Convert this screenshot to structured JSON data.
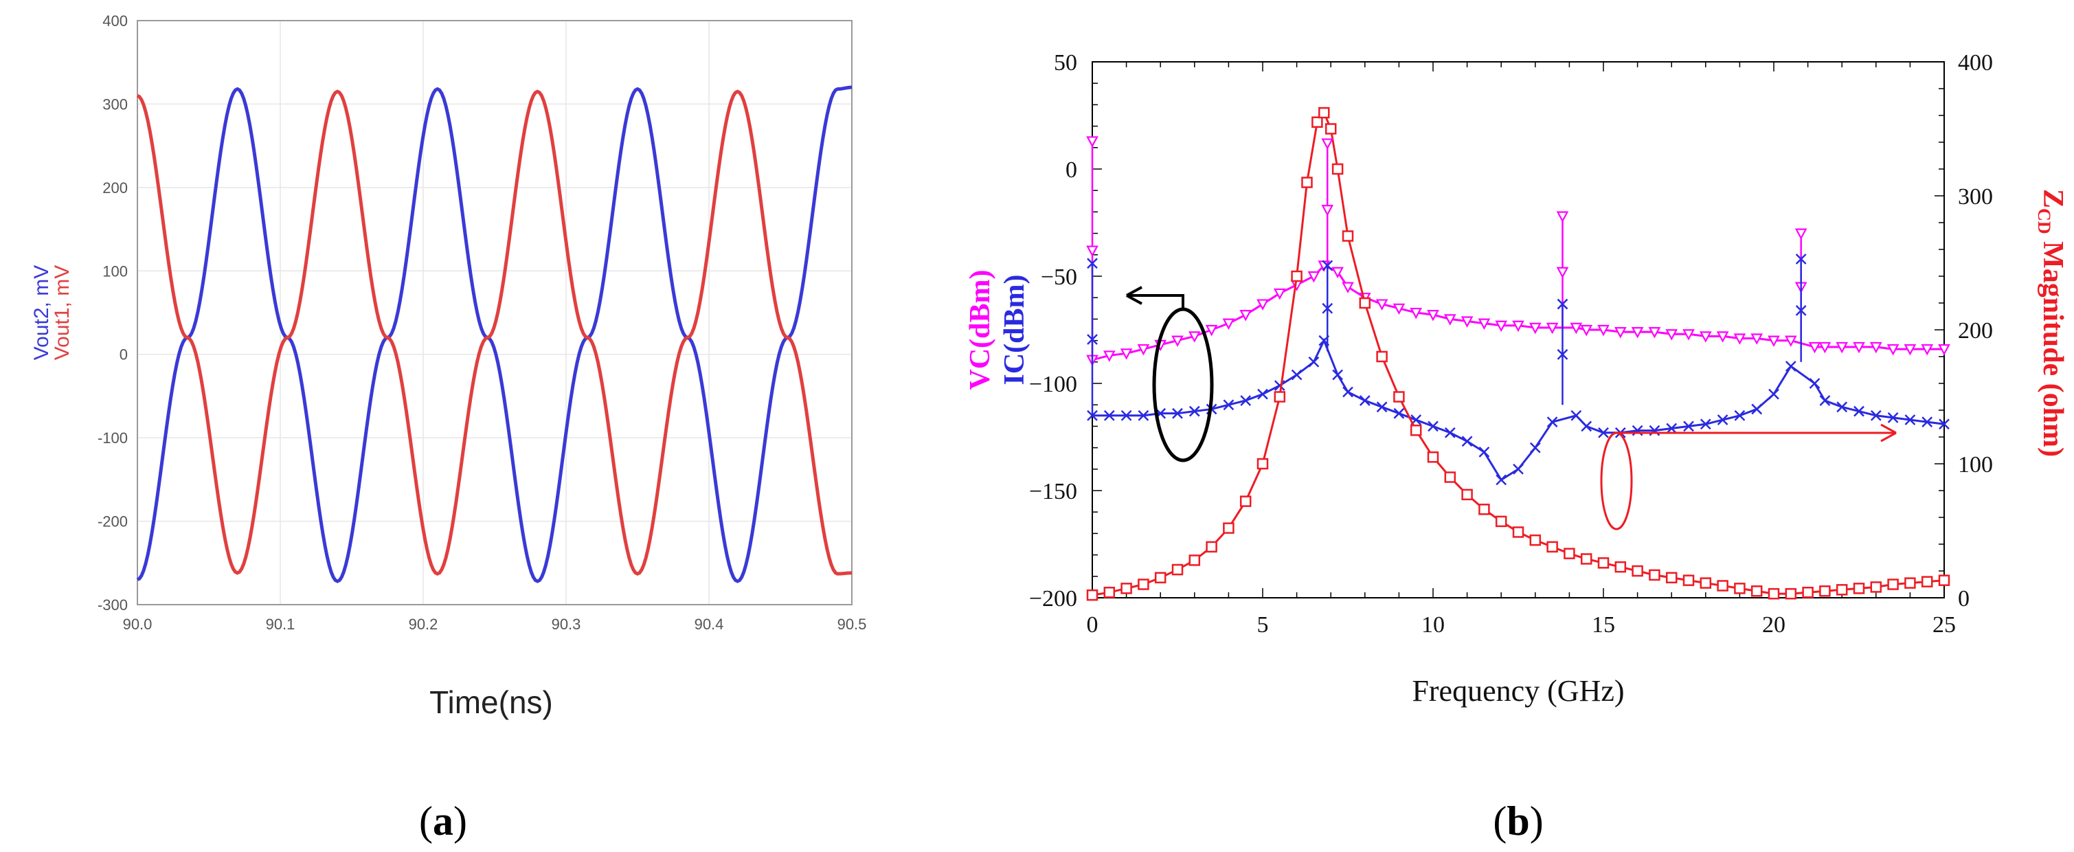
{
  "panels": {
    "a": {
      "label_open": "(",
      "label_letter": "a",
      "label_close": ")"
    },
    "b": {
      "label_open": "(",
      "label_letter": "b",
      "label_close": ")"
    }
  },
  "chart_data": [
    {
      "type": "line",
      "xlabel": "Time(ns)",
      "ylabel_parts": [
        {
          "text": "Vout2, mV",
          "color": "#3a3ad6"
        },
        {
          "text": "Vout1, mV",
          "color": "#e0403f"
        }
      ],
      "xlim": [
        90.0,
        90.5
      ],
      "ylim": [
        -300,
        400
      ],
      "x_ticks": [
        "90.0",
        "90.1",
        "90.2",
        "90.3",
        "90.4",
        "90.5"
      ],
      "y_ticks": [
        "400",
        "300",
        "200",
        "100",
        "0",
        "-100",
        "-200",
        "-300"
      ],
      "grid": true,
      "series": [
        {
          "name": "Vout2",
          "color": "#3a3ad6",
          "x": [
            90.0,
            90.035,
            90.07,
            90.105,
            90.14,
            90.175,
            90.21,
            90.245,
            90.28,
            90.315,
            90.35,
            90.385,
            90.42,
            90.455,
            90.49,
            90.5
          ],
          "y": [
            -270,
            20,
            318,
            20,
            -272,
            20,
            318,
            20,
            -272,
            20,
            318,
            20,
            -272,
            20,
            318,
            320
          ]
        },
        {
          "name": "Vout1",
          "color": "#e0403f",
          "x": [
            90.0,
            90.035,
            90.07,
            90.105,
            90.14,
            90.175,
            90.21,
            90.245,
            90.28,
            90.315,
            90.35,
            90.385,
            90.42,
            90.455,
            90.49,
            90.5
          ],
          "y": [
            310,
            20,
            -262,
            20,
            315,
            20,
            -263,
            20,
            315,
            20,
            -263,
            20,
            315,
            20,
            -263,
            -262
          ]
        }
      ]
    },
    {
      "type": "line",
      "xlabel": "Frequency (GHz)",
      "ylabel_left_parts": [
        {
          "text": "VC(dBm)",
          "color": "#ff00ff"
        },
        {
          "text": "IC(dBm)",
          "color": "#2a2ae0"
        }
      ],
      "ylabel_right": {
        "main": "Z",
        "sub": "CD",
        "rest": " Magnitude (ohm)",
        "color": "#ee1c24"
      },
      "xlim": [
        0,
        25
      ],
      "ylim_left": [
        -200,
        50
      ],
      "ylim_right": [
        0,
        400
      ],
      "x_ticks": [
        "0",
        "5",
        "10",
        "15",
        "20",
        "25"
      ],
      "y_ticks_left": [
        "50",
        "0",
        "−50",
        "−100",
        "−150",
        "−200"
      ],
      "y_ticks_right": [
        "400",
        "300",
        "200",
        "100",
        "0"
      ],
      "series": [
        {
          "name": "VC",
          "axis": "left",
          "color": "#ff00ff",
          "marker": "triangle-down",
          "x": [
            0,
            0.5,
            1,
            1.5,
            2,
            2.5,
            3,
            3.5,
            4,
            4.5,
            5,
            5.5,
            6,
            6.5,
            6.8,
            7.2,
            7.5,
            8,
            8.5,
            9,
            9.5,
            10,
            10.5,
            11,
            11.5,
            12,
            12.5,
            13,
            13.5,
            14.2,
            14.5,
            15,
            15.5,
            16,
            16.5,
            17,
            17.5,
            18,
            18.5,
            19,
            19.5,
            20,
            20.5,
            21.2,
            21.5,
            22,
            22.5,
            23,
            23.5,
            24,
            24.5,
            25
          ],
          "y": [
            -89,
            -87,
            -86,
            -84,
            -82,
            -80,
            -78,
            -75,
            -72,
            -68,
            -63,
            -58,
            -54,
            -50,
            -45,
            -48,
            -55,
            -60,
            -63,
            -65,
            -67,
            -68,
            -70,
            -71,
            -72,
            -73,
            -73,
            -74,
            -74,
            -74,
            -75,
            -75,
            -76,
            -76,
            -76,
            -77,
            -77,
            -78,
            -78,
            -79,
            -79,
            -80,
            -80,
            -83,
            -83,
            -83,
            -83,
            -83,
            -84,
            -84,
            -84,
            -84
          ]
        },
        {
          "name": "IC",
          "axis": "left",
          "color": "#2a2ae0",
          "marker": "x",
          "x": [
            0,
            0.5,
            1,
            1.5,
            2,
            2.5,
            3,
            3.5,
            4,
            4.5,
            5,
            5.5,
            6,
            6.5,
            6.8,
            7.2,
            7.5,
            8,
            8.5,
            9,
            9.5,
            10,
            10.5,
            11,
            11.5,
            12,
            12.5,
            13,
            13.5,
            14.2,
            14.5,
            15,
            15.5,
            16,
            16.5,
            17,
            17.5,
            18,
            18.5,
            19,
            19.5,
            20,
            20.5,
            21.2,
            21.5,
            22,
            22.5,
            23,
            23.5,
            24,
            24.5,
            25
          ],
          "y": [
            -115,
            -115,
            -115,
            -115,
            -114,
            -114,
            -113,
            -112,
            -110,
            -108,
            -105,
            -101,
            -96,
            -90,
            -80,
            -96,
            -104,
            -108,
            -111,
            -114,
            -117,
            -120,
            -123,
            -127,
            -132,
            -145,
            -140,
            -130,
            -118,
            -115,
            -120,
            -123,
            -123,
            -122,
            -122,
            -121,
            -120,
            -119,
            -117,
            -115,
            -112,
            -105,
            -92,
            -100,
            -108,
            -111,
            -113,
            -115,
            -116,
            -117,
            -118,
            -119
          ]
        },
        {
          "name": "ZCD",
          "axis": "right",
          "color": "#ee1c24",
          "marker": "square",
          "x": [
            0,
            0.5,
            1,
            1.5,
            2,
            2.5,
            3,
            3.5,
            4,
            4.5,
            5,
            5.5,
            6,
            6.3,
            6.6,
            6.8,
            7,
            7.2,
            7.5,
            8,
            8.5,
            9,
            9.5,
            10,
            10.5,
            11,
            11.5,
            12,
            12.5,
            13,
            13.5,
            14,
            14.5,
            15,
            15.5,
            16,
            16.5,
            17,
            17.5,
            18,
            18.5,
            19,
            19.5,
            20,
            20.5,
            21,
            21.5,
            22,
            22.5,
            23,
            23.5,
            24,
            24.5,
            25
          ],
          "y": [
            2,
            4,
            7,
            10,
            15,
            21,
            28,
            38,
            52,
            72,
            100,
            150,
            240,
            310,
            355,
            362,
            350,
            320,
            270,
            220,
            180,
            150,
            125,
            105,
            90,
            77,
            66,
            57,
            49,
            43,
            38,
            33,
            29,
            26,
            23,
            20,
            17,
            15,
            13,
            11,
            9,
            7,
            5,
            3,
            3,
            4,
            5,
            6,
            7,
            8,
            10,
            11,
            12,
            13
          ]
        }
      ],
      "spikes": [
        {
          "series": "VC",
          "x": 0.0,
          "top": 13,
          "base": -89
        },
        {
          "series": "VC",
          "x": 6.9,
          "top": 12,
          "base": -50
        },
        {
          "series": "VC",
          "x": 13.8,
          "top": -22,
          "base": -74
        },
        {
          "series": "VC",
          "x": 20.8,
          "top": -30,
          "base": -80
        },
        {
          "series": "IC",
          "x": 0.0,
          "top": -44,
          "base": -115
        },
        {
          "series": "IC",
          "x": 6.9,
          "top": -45,
          "base": -85
        },
        {
          "series": "IC",
          "x": 13.8,
          "top": -63,
          "base": -110
        },
        {
          "series": "IC",
          "x": 20.8,
          "top": -42,
          "base": -90
        }
      ]
    }
  ]
}
